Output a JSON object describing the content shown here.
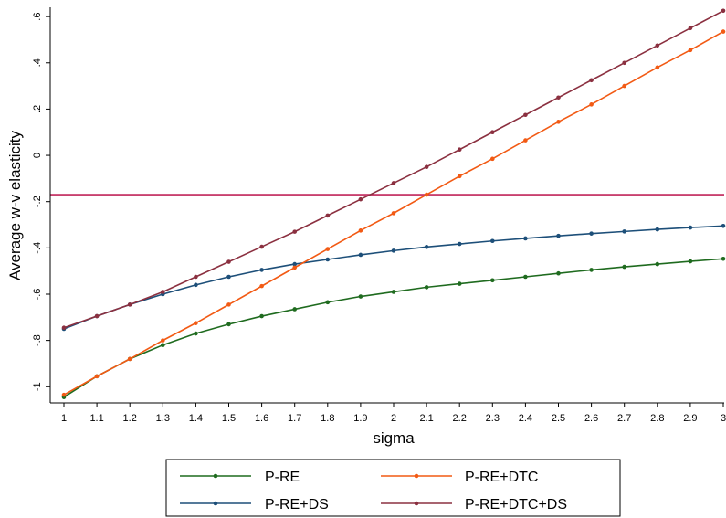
{
  "chart_data": {
    "type": "line",
    "title": "",
    "xlabel": "sigma",
    "ylabel": "Average w-v elasticity",
    "x": [
      1,
      1.1,
      1.2,
      1.3,
      1.4,
      1.5,
      1.6,
      1.7,
      1.8,
      1.9,
      2,
      2.1,
      2.2,
      2.3,
      2.4,
      2.5,
      2.6,
      2.7,
      2.8,
      2.9,
      3
    ],
    "x_tick_labels": [
      "1",
      "1.1",
      "1.2",
      "1.3",
      "1.4",
      "1.5",
      "1.6",
      "1.7",
      "1.8",
      "1.9",
      "2",
      "2.1",
      "2.2",
      "2.3",
      "2.4",
      "2.5",
      "2.6",
      "2.7",
      "2.8",
      "2.9",
      "3"
    ],
    "y_ticks": [
      -1,
      -0.8,
      -0.6,
      -0.4,
      -0.2,
      0,
      0.2,
      0.4,
      0.6
    ],
    "y_tick_labels": [
      "-1",
      "-.8",
      "-.6",
      "-.4",
      "-.2",
      "0",
      ".2",
      ".4",
      ".6"
    ],
    "xlim": [
      1,
      3
    ],
    "ylim": [
      -1.07,
      0.64
    ],
    "grid": false,
    "legend_placement": "bottom",
    "reference_line": {
      "y": -0.17,
      "color": "#c0245a"
    },
    "series": [
      {
        "name": "P-RE",
        "color": "#1f6b1f",
        "values": [
          -1.045,
          -0.955,
          -0.88,
          -0.82,
          -0.77,
          -0.73,
          -0.695,
          -0.665,
          -0.635,
          -0.61,
          -0.59,
          -0.57,
          -0.555,
          -0.54,
          -0.525,
          -0.51,
          -0.495,
          -0.482,
          -0.47,
          -0.458,
          -0.447
        ]
      },
      {
        "name": "P-RE+DS",
        "color": "#1d4f79",
        "values": [
          -0.75,
          -0.695,
          -0.645,
          -0.6,
          -0.56,
          -0.525,
          -0.495,
          -0.47,
          -0.45,
          -0.43,
          -0.412,
          -0.396,
          -0.383,
          -0.37,
          -0.359,
          -0.348,
          -0.338,
          -0.329,
          -0.32,
          -0.312,
          -0.305
        ]
      },
      {
        "name": "P-RE+DTC",
        "color": "#f25a14",
        "values": [
          -1.035,
          -0.955,
          -0.88,
          -0.8,
          -0.725,
          -0.645,
          -0.565,
          -0.485,
          -0.405,
          -0.325,
          -0.25,
          -0.17,
          -0.09,
          -0.015,
          0.065,
          0.145,
          0.22,
          0.3,
          0.38,
          0.455,
          0.535
        ]
      },
      {
        "name": "P-RE+DTC+DS",
        "color": "#8b3040",
        "values": [
          -0.745,
          -0.695,
          -0.645,
          -0.59,
          -0.525,
          -0.46,
          -0.395,
          -0.33,
          -0.26,
          -0.19,
          -0.12,
          -0.05,
          0.025,
          0.1,
          0.175,
          0.25,
          0.325,
          0.4,
          0.475,
          0.55,
          0.625
        ]
      }
    ]
  }
}
